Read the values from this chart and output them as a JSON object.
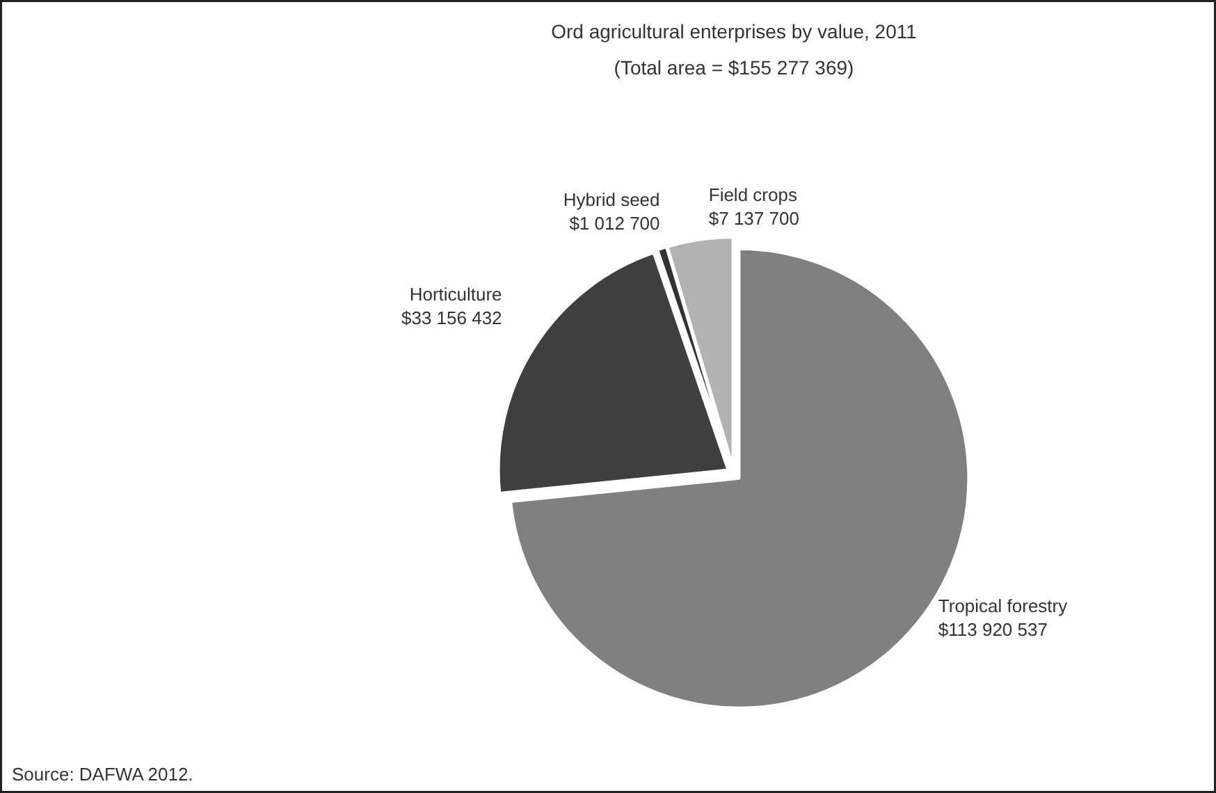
{
  "chart_data": {
    "type": "pie",
    "title": "Ord agricultural enterprises by value, 2011",
    "subtitle": "(Total area = $155 277 369)",
    "categories": [
      "Tropical forestry",
      "Horticulture",
      "Hybrid seed",
      "Field crops"
    ],
    "values": [
      113920537,
      33156432,
      1012700,
      7137700
    ],
    "value_labels": [
      "$113 920 537",
      "$33 156 432",
      "$1 012 700",
      "$7 137 700"
    ],
    "colors": [
      "#808080",
      "#3f3f3f",
      "#333333",
      "#b3b3b3"
    ],
    "annotations": [
      "Source: DAFWA 2012."
    ]
  }
}
